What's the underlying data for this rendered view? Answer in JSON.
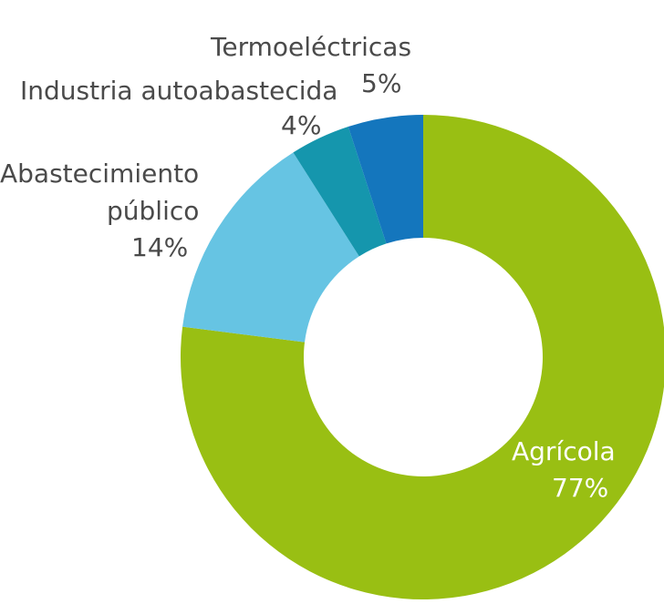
{
  "chart_data": {
    "type": "pie",
    "subtype": "donut",
    "title": "",
    "categories": [
      "Agrícola",
      "Abastecimiento público",
      "Industria autoabastecida",
      "Termoeléctricas"
    ],
    "values": [
      77,
      14,
      4,
      5
    ],
    "unit": "%",
    "labels": {
      "agricola": {
        "name": "Agrícola",
        "value": "77%"
      },
      "publico": {
        "name_line1": "Abastecimiento",
        "name_line2": "público",
        "value": "14%"
      },
      "industria": {
        "name": "Industria autoabastecida",
        "value": "4%"
      },
      "termo": {
        "name": "Termoeléctricas",
        "value": "5%"
      }
    },
    "colors": [
      "#99bf13",
      "#66c4e3",
      "#1596ad",
      "#1476bd"
    ]
  }
}
